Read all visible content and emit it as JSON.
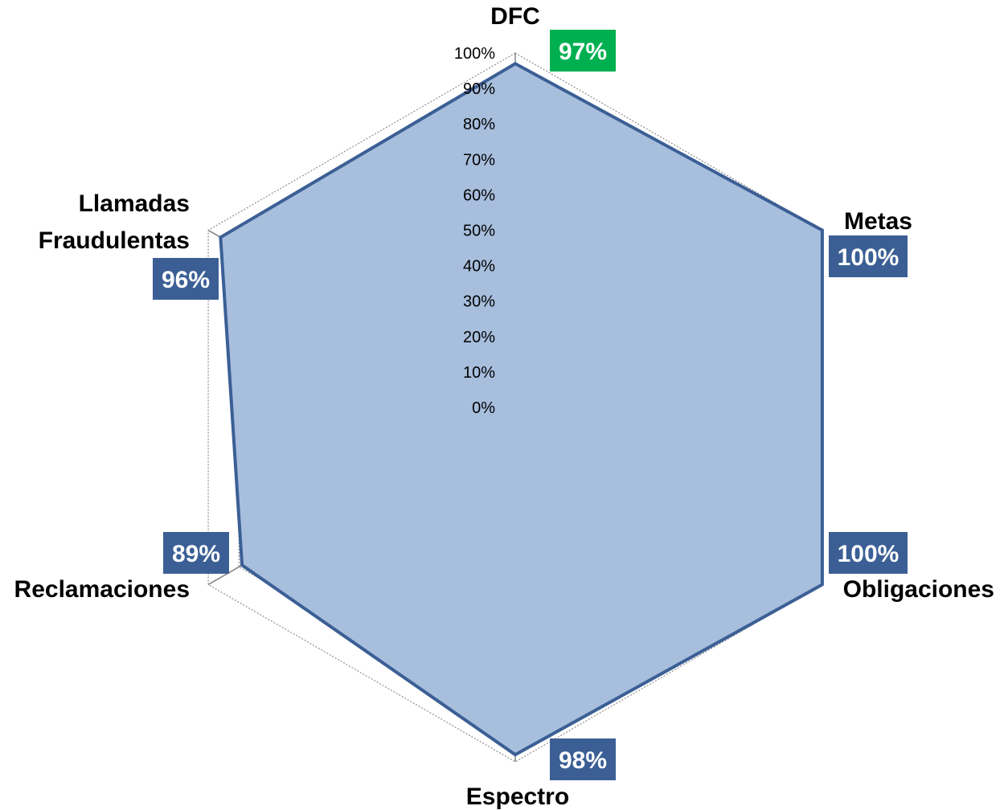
{
  "chart_data": {
    "type": "radar",
    "categories": [
      "DFC",
      "Metas",
      "Obligaciones",
      "Espectro",
      "Reclamaciones",
      "Llamadas Fraudulentas"
    ],
    "values": [
      97,
      100,
      100,
      98,
      89,
      96
    ],
    "value_labels": [
      "97%",
      "100%",
      "100%",
      "98%",
      "89%",
      "96%"
    ],
    "tick_labels": [
      "0%",
      "10%",
      "20%",
      "30%",
      "40%",
      "50%",
      "60%",
      "70%",
      "80%",
      "90%",
      "100%"
    ],
    "rlim": [
      0,
      100
    ],
    "grid": true,
    "legend": "none",
    "colors": {
      "area_fill": "#A7BEDD",
      "series_line": "#3B5F95",
      "grid_line": "#8C8C8C",
      "axis_line": "#8C8C8C",
      "label_box_default": "#3B5F95",
      "label_box_highlight": "#00B050"
    },
    "highlight_index": 0
  }
}
